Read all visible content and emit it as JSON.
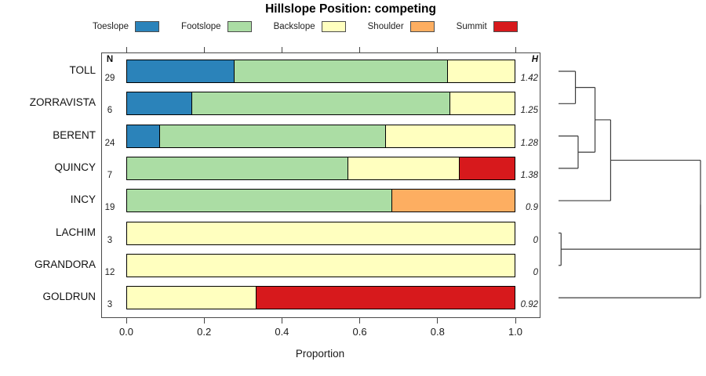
{
  "title": "Hillslope Position: competing",
  "legend": [
    {
      "label": "Toeslope",
      "color": "#2B83BA"
    },
    {
      "label": "Footslope",
      "color": "#ABDDA4"
    },
    {
      "label": "Backslope",
      "color": "#FFFFBF"
    },
    {
      "label": "Shoulder",
      "color": "#FDAE61"
    },
    {
      "label": "Summit",
      "color": "#D7191C"
    }
  ],
  "columns": {
    "n_header": "N",
    "h_header": "H"
  },
  "x_axis": {
    "label": "Proportion",
    "ticks": [
      "0.0",
      "0.2",
      "0.4",
      "0.6",
      "0.8",
      "1.0"
    ],
    "range": [
      0,
      1
    ]
  },
  "chart_data": {
    "type": "bar",
    "orientation": "horizontal-stacked",
    "title": "Hillslope Position: competing",
    "xlabel": "Proportion",
    "xlim": [
      0,
      1
    ],
    "grid": false,
    "legend_position": "top",
    "categories": [
      "Toeslope",
      "Footslope",
      "Backslope",
      "Shoulder",
      "Summit"
    ],
    "category_colors": {
      "Toeslope": "#2B83BA",
      "Footslope": "#ABDDA4",
      "Backslope": "#FFFFBF",
      "Shoulder": "#FDAE61",
      "Summit": "#D7191C"
    },
    "rows": [
      {
        "name": "TOLL",
        "n": 29,
        "h": "1.42",
        "segments": [
          {
            "category": "Toeslope",
            "value": 0.276
          },
          {
            "category": "Footslope",
            "value": 0.552
          },
          {
            "category": "Backslope",
            "value": 0.172
          }
        ]
      },
      {
        "name": "ZORRAVISTA",
        "n": 6,
        "h": "1.25",
        "segments": [
          {
            "category": "Toeslope",
            "value": 0.167
          },
          {
            "category": "Footslope",
            "value": 0.666
          },
          {
            "category": "Backslope",
            "value": 0.167
          }
        ]
      },
      {
        "name": "BERENT",
        "n": 24,
        "h": "1.28",
        "segments": [
          {
            "category": "Toeslope",
            "value": 0.083
          },
          {
            "category": "Footslope",
            "value": 0.583
          },
          {
            "category": "Backslope",
            "value": 0.334
          }
        ]
      },
      {
        "name": "QUINCY",
        "n": 7,
        "h": "1.38",
        "segments": [
          {
            "category": "Footslope",
            "value": 0.571
          },
          {
            "category": "Backslope",
            "value": 0.286
          },
          {
            "category": "Summit",
            "value": 0.143
          }
        ]
      },
      {
        "name": "INCY",
        "n": 19,
        "h": "0.9",
        "segments": [
          {
            "category": "Footslope",
            "value": 0.684
          },
          {
            "category": "Shoulder",
            "value": 0.316
          }
        ]
      },
      {
        "name": "LACHIM",
        "n": 3,
        "h": "0",
        "segments": [
          {
            "category": "Backslope",
            "value": 1.0
          }
        ]
      },
      {
        "name": "GRANDORA",
        "n": 12,
        "h": "0",
        "segments": [
          {
            "category": "Backslope",
            "value": 1.0
          }
        ]
      },
      {
        "name": "GOLDRUN",
        "n": 3,
        "h": "0.92",
        "segments": [
          {
            "category": "Backslope",
            "value": 0.333
          },
          {
            "category": "Summit",
            "value": 0.667
          }
        ]
      }
    ]
  },
  "dendrogram": {
    "leaves": [
      "TOLL",
      "ZORRAVISTA",
      "BERENT",
      "QUINCY",
      "INCY",
      "LACHIM",
      "GRANDORA",
      "GOLDRUN"
    ],
    "merges": [
      {
        "id": "m1",
        "children": [
          "L0",
          "L1"
        ],
        "height": 0.119
      },
      {
        "id": "m2",
        "children": [
          "L2",
          "L3"
        ],
        "height": 0.138
      },
      {
        "id": "m3",
        "children": [
          "m1",
          "m2"
        ],
        "height": 0.257
      },
      {
        "id": "m4",
        "children": [
          "m3",
          "L4"
        ],
        "height": 0.367
      },
      {
        "id": "m5",
        "children": [
          "L5",
          "L6"
        ],
        "height": 0.018
      },
      {
        "id": "m6",
        "children": [
          "m4",
          "m5"
        ],
        "height": 1.0
      },
      {
        "id": "m7",
        "children": [
          "m6",
          "L7"
        ],
        "height": 1.0
      }
    ]
  }
}
